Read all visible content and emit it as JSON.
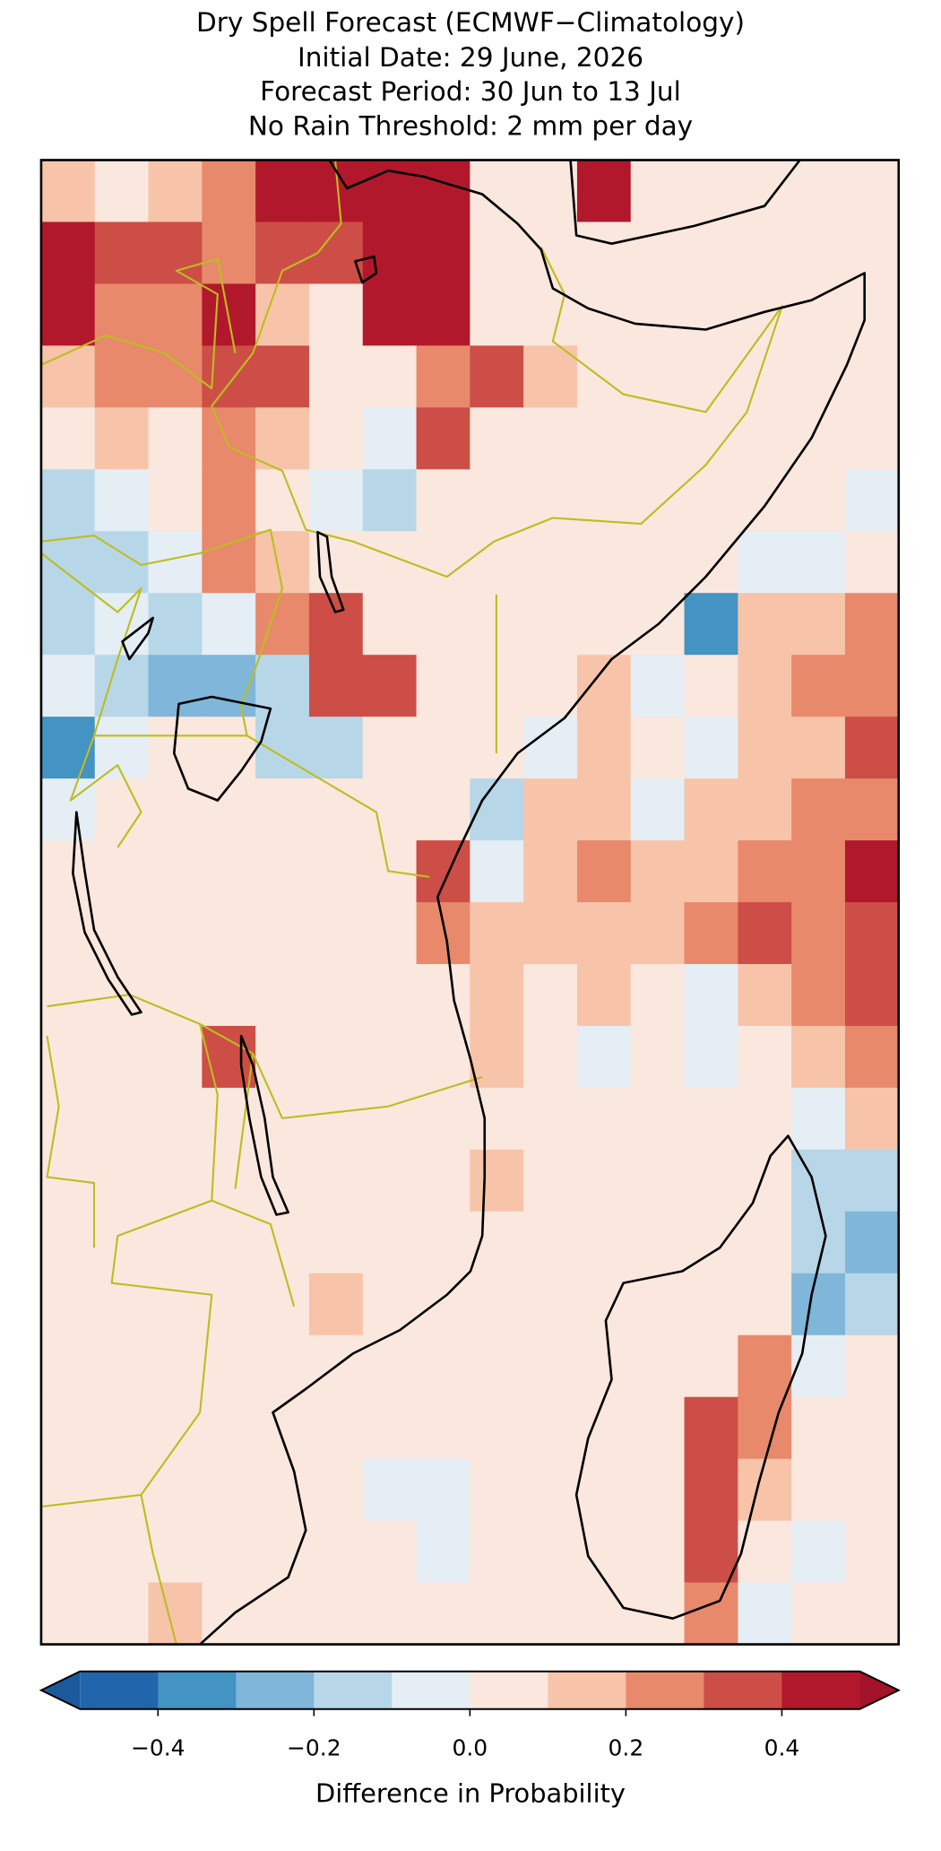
{
  "chart_data": {
    "type": "gridmap",
    "title": [
      "Dry Spell Forecast (ECMWF−Climatology)",
      "Initial Date: 29 June, 2026",
      "Forecast Period: 30 Jun to 13 Jul",
      "No Rain Threshold: 2 mm per day"
    ],
    "values": [
      [
        0.15,
        0.05,
        0.15,
        0.25,
        0.45,
        0.45,
        0.45,
        0.45,
        0.05,
        0.05,
        0.45,
        0.05,
        0.05,
        0.05,
        0.05,
        0.05
      ],
      [
        0.45,
        0.35,
        0.35,
        0.25,
        0.35,
        0.35,
        0.45,
        0.45,
        0.05,
        0.05,
        0.05,
        0.05,
        0.05,
        0.05,
        0.05,
        0.05
      ],
      [
        0.45,
        0.25,
        0.25,
        0.45,
        0.15,
        0.05,
        0.45,
        0.45,
        0.05,
        0.05,
        0.05,
        0.05,
        0.05,
        0.05,
        0.05,
        0.05
      ],
      [
        0.15,
        0.25,
        0.25,
        0.35,
        0.35,
        0.05,
        0.05,
        0.25,
        0.35,
        0.15,
        0.05,
        0.05,
        0.05,
        0.05,
        0.05,
        0.05
      ],
      [
        0.05,
        0.15,
        0.05,
        0.25,
        0.15,
        0.05,
        -0.05,
        0.35,
        0.05,
        0.05,
        0.05,
        0.05,
        0.05,
        0.05,
        0.05,
        0.05
      ],
      [
        -0.15,
        -0.05,
        0.05,
        0.25,
        0.05,
        -0.05,
        -0.15,
        0.05,
        0.05,
        0.05,
        0.05,
        0.05,
        0.05,
        0.05,
        0.05,
        -0.05
      ],
      [
        -0.15,
        -0.15,
        -0.05,
        0.25,
        0.15,
        0.05,
        0.05,
        0.05,
        0.05,
        0.05,
        0.05,
        0.05,
        0.05,
        -0.05,
        -0.05,
        0.05
      ],
      [
        -0.15,
        -0.05,
        -0.15,
        -0.05,
        0.25,
        0.35,
        0.05,
        0.05,
        0.05,
        0.05,
        0.05,
        0.05,
        -0.35,
        0.15,
        0.15,
        0.25
      ],
      [
        -0.05,
        -0.15,
        -0.25,
        -0.25,
        -0.15,
        0.35,
        0.35,
        0.05,
        0.05,
        0.05,
        0.15,
        -0.05,
        0.05,
        0.15,
        0.25,
        0.25
      ],
      [
        -0.35,
        -0.05,
        0.05,
        0.05,
        -0.15,
        -0.15,
        0.05,
        0.05,
        0.05,
        -0.05,
        0.15,
        0.05,
        -0.05,
        0.15,
        0.15,
        0.35
      ],
      [
        -0.05,
        0.05,
        0.05,
        0.05,
        0.05,
        0.05,
        0.05,
        0.05,
        -0.15,
        0.15,
        0.15,
        -0.05,
        0.15,
        0.15,
        0.25,
        0.25
      ],
      [
        0.05,
        0.05,
        0.05,
        0.05,
        0.05,
        0.05,
        0.05,
        0.35,
        -0.05,
        0.15,
        0.25,
        0.15,
        0.15,
        0.25,
        0.25,
        0.45
      ],
      [
        0.05,
        0.05,
        0.05,
        0.05,
        0.05,
        0.05,
        0.05,
        0.25,
        0.15,
        0.15,
        0.15,
        0.15,
        0.25,
        0.35,
        0.25,
        0.35
      ],
      [
        0.05,
        0.05,
        0.05,
        0.05,
        0.05,
        0.05,
        0.05,
        0.05,
        0.15,
        0.05,
        0.15,
        0.05,
        -0.05,
        0.15,
        0.25,
        0.35
      ],
      [
        0.05,
        0.05,
        0.05,
        0.35,
        0.05,
        0.05,
        0.05,
        0.05,
        0.15,
        0.05,
        -0.05,
        0.05,
        -0.05,
        0.05,
        0.15,
        0.25
      ],
      [
        0.05,
        0.05,
        0.05,
        0.05,
        0.05,
        0.05,
        0.05,
        0.05,
        0.05,
        0.05,
        0.05,
        0.05,
        0.05,
        0.05,
        -0.05,
        0.15
      ],
      [
        0.05,
        0.05,
        0.05,
        0.05,
        0.05,
        0.05,
        0.05,
        0.05,
        0.15,
        0.05,
        0.05,
        0.05,
        0.05,
        0.05,
        -0.15,
        -0.15
      ],
      [
        0.05,
        0.05,
        0.05,
        0.05,
        0.05,
        0.05,
        0.05,
        0.05,
        0.05,
        0.05,
        0.05,
        0.05,
        0.05,
        0.05,
        -0.15,
        -0.25
      ],
      [
        0.05,
        0.05,
        0.05,
        0.05,
        0.05,
        0.15,
        0.05,
        0.05,
        0.05,
        0.05,
        0.05,
        0.05,
        0.05,
        0.05,
        -0.25,
        -0.15
      ],
      [
        0.05,
        0.05,
        0.05,
        0.05,
        0.05,
        0.05,
        0.05,
        0.05,
        0.05,
        0.05,
        0.05,
        0.05,
        0.05,
        0.25,
        -0.05,
        0.05
      ],
      [
        0.05,
        0.05,
        0.05,
        0.05,
        0.05,
        0.05,
        0.05,
        0.05,
        0.05,
        0.05,
        0.05,
        0.05,
        0.35,
        0.25,
        0.05,
        0.05
      ],
      [
        0.05,
        0.05,
        0.05,
        0.05,
        0.05,
        0.05,
        -0.05,
        -0.05,
        0.05,
        0.05,
        0.05,
        0.05,
        0.35,
        0.15,
        0.05,
        0.05
      ],
      [
        0.05,
        0.05,
        0.05,
        0.05,
        0.05,
        0.05,
        0.05,
        -0.05,
        0.05,
        0.05,
        0.05,
        0.05,
        0.35,
        0.05,
        -0.05,
        0.05
      ],
      [
        0.05,
        0.05,
        0.15,
        0.05,
        0.05,
        0.05,
        0.05,
        0.05,
        0.05,
        0.05,
        0.05,
        0.05,
        0.25,
        -0.05,
        0.05,
        0.05
      ]
    ],
    "colorbar": {
      "label": "Difference in Probability",
      "lim": [
        -0.5,
        0.5
      ],
      "bounds": [
        -0.5,
        -0.4,
        -0.3,
        -0.2,
        -0.1,
        0,
        0.1,
        0.2,
        0.3,
        0.4,
        0.5
      ],
      "colors": [
        "#2166ac",
        "#4393c3",
        "#7fb6d9",
        "#b7d7e8",
        "#e4eef4",
        "#fae7de",
        "#f7c4aa",
        "#e8896c",
        "#cd4e46",
        "#b2182b"
      ],
      "extend_colors": [
        "#1a5a9c",
        "#a3132a"
      ],
      "ticks": [
        {
          "value": -0.4,
          "label": "−0.4"
        },
        {
          "value": -0.2,
          "label": "−0.2"
        },
        {
          "value": 0,
          "label": "0.0"
        },
        {
          "value": 0.2,
          "label": "0.2"
        },
        {
          "value": 0.4,
          "label": "0.4"
        }
      ]
    }
  }
}
